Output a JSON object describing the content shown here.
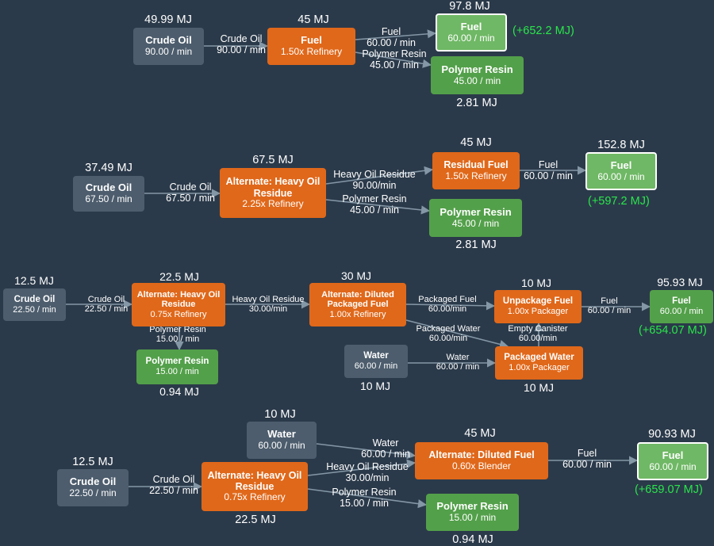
{
  "colors": {
    "background": "#2b3a4a",
    "raw_node": "#4d5d6d",
    "recipe_node": "#e0681a",
    "product_node": "#53a04a",
    "final_node": "#6fb865",
    "surplus_text": "#29e64a",
    "edge": "#8497a6"
  },
  "rows": [
    {
      "nodes": {
        "crude": {
          "kind": "raw",
          "title": "Crude Oil",
          "rate": "90.00 / min",
          "mj": "49.99 MJ"
        },
        "fuel_recipe": {
          "kind": "recipe",
          "title": "Fuel",
          "rate": "1.50x Refinery",
          "mj": "45 MJ"
        },
        "fuel_out": {
          "kind": "final",
          "title": "Fuel",
          "rate": "60.00 / min",
          "mj": "97.8 MJ",
          "surplus": "(+652.2 MJ)"
        },
        "resin_out": {
          "kind": "product",
          "title": "Polymer Resin",
          "rate": "45.00 / min",
          "mj": "2.81 MJ"
        }
      },
      "edges": [
        {
          "label1": "Crude Oil",
          "label2": "90.00 / min"
        },
        {
          "label1": "Fuel",
          "label2": "60.00 / min"
        },
        {
          "label1": "Polymer Resin",
          "label2": "45.00 / min"
        }
      ]
    },
    {
      "nodes": {
        "crude": {
          "kind": "raw",
          "title": "Crude Oil",
          "rate": "67.50 / min",
          "mj": "37.49 MJ"
        },
        "heavy_recipe": {
          "kind": "recipe",
          "title": "Alternate: Heavy Oil Residue",
          "rate": "2.25x Refinery",
          "mj": "67.5 MJ"
        },
        "residual_recipe": {
          "kind": "recipe",
          "title": "Residual Fuel",
          "rate": "1.50x Refinery",
          "mj": "45 MJ"
        },
        "fuel_out": {
          "kind": "final",
          "title": "Fuel",
          "rate": "60.00 / min",
          "mj": "152.8 MJ",
          "surplus": "(+597.2 MJ)"
        },
        "resin_out": {
          "kind": "product",
          "title": "Polymer Resin",
          "rate": "45.00 / min",
          "mj": "2.81 MJ"
        }
      },
      "edges": [
        {
          "label1": "Crude Oil",
          "label2": "67.50 / min"
        },
        {
          "label1": "Heavy Oil Residue",
          "label2": "90.00/min"
        },
        {
          "label1": "Polymer Resin",
          "label2": "45.00 / min"
        },
        {
          "label1": "Fuel",
          "label2": "60.00 / min"
        }
      ]
    },
    {
      "nodes": {
        "crude": {
          "kind": "raw",
          "title": "Crude Oil",
          "rate": "22.50 / min",
          "mj": "12.5 MJ"
        },
        "heavy_recipe": {
          "kind": "recipe",
          "title": "Alternate: Heavy Oil Residue",
          "rate": "0.75x Refinery",
          "mj": "22.5 MJ"
        },
        "resin_out": {
          "kind": "product",
          "title": "Polymer Resin",
          "rate": "15.00 / min",
          "mj": "0.94 MJ"
        },
        "diluted_recipe": {
          "kind": "recipe",
          "title": "Alternate: Diluted Packaged Fuel",
          "rate": "1.00x Refinery",
          "mj": "30 MJ"
        },
        "unpackage_recipe": {
          "kind": "recipe",
          "title": "Unpackage Fuel",
          "rate": "1.00x Packager",
          "mj": "10 MJ"
        },
        "fuel_out": {
          "kind": "product",
          "title": "Fuel",
          "rate": "60.00 / min",
          "mj": "95.93 MJ",
          "surplus": "(+654.07 MJ)"
        },
        "water": {
          "kind": "raw",
          "title": "Water",
          "rate": "60.00 / min",
          "mj": "10 MJ"
        },
        "packwater_recipe": {
          "kind": "recipe",
          "title": "Packaged Water",
          "rate": "1.00x Packager",
          "mj": "10 MJ"
        }
      },
      "edges": [
        {
          "label1": "Crude Oil",
          "label2": "22.50 / min"
        },
        {
          "label1": "Heavy Oil Residue",
          "label2": "30.00/min"
        },
        {
          "label1": "Polymer Resin",
          "label2": "15.00 / min"
        },
        {
          "label1": "Packaged Fuel",
          "label2": "60.00/min"
        },
        {
          "label1": "Fuel",
          "label2": "60.00 / min"
        },
        {
          "label1": "Packaged Water",
          "label2": "60.00/min"
        },
        {
          "label1": "Empty Canister",
          "label2": "60.00/min"
        },
        {
          "label1": "Water",
          "label2": "60.00 / min"
        }
      ]
    },
    {
      "nodes": {
        "crude": {
          "kind": "raw",
          "title": "Crude Oil",
          "rate": "22.50 / min",
          "mj": "12.5 MJ"
        },
        "heavy_recipe": {
          "kind": "recipe",
          "title": "Alternate: Heavy Oil Residue",
          "rate": "0.75x Refinery",
          "mj": "22.5 MJ"
        },
        "water": {
          "kind": "raw",
          "title": "Water",
          "rate": "60.00 / min",
          "mj": "10 MJ"
        },
        "blender_recipe": {
          "kind": "recipe",
          "title": "Alternate: Diluted Fuel",
          "rate": "0.60x Blender",
          "mj": "45 MJ"
        },
        "fuel_out": {
          "kind": "final",
          "title": "Fuel",
          "rate": "60.00 / min",
          "mj": "90.93 MJ",
          "surplus": "(+659.07 MJ)"
        },
        "resin_out": {
          "kind": "product",
          "title": "Polymer Resin",
          "rate": "15.00 / min",
          "mj": "0.94 MJ"
        }
      },
      "edges": [
        {
          "label1": "Crude Oil",
          "label2": "22.50 / min"
        },
        {
          "label1": "Water",
          "label2": "60.00 / min"
        },
        {
          "label1": "Heavy Oil Residue",
          "label2": "30.00/min"
        },
        {
          "label1": "Polymer Resin",
          "label2": "15.00 / min"
        },
        {
          "label1": "Fuel",
          "label2": "60.00 / min"
        }
      ]
    }
  ]
}
